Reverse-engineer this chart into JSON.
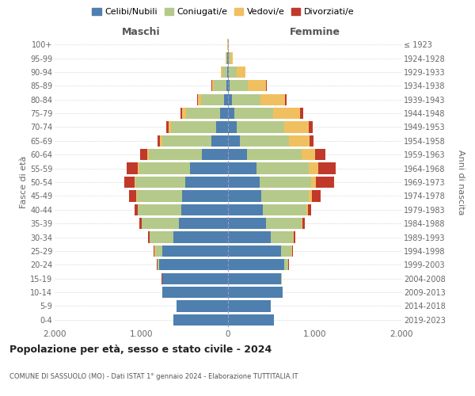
{
  "age_groups": [
    "100+",
    "95-99",
    "90-94",
    "85-89",
    "80-84",
    "75-79",
    "70-74",
    "65-69",
    "60-64",
    "55-59",
    "50-54",
    "45-49",
    "40-44",
    "35-39",
    "30-34",
    "25-29",
    "20-24",
    "15-19",
    "10-14",
    "5-9",
    "0-4"
  ],
  "birth_years": [
    "≤ 1923",
    "1924-1928",
    "1929-1933",
    "1934-1938",
    "1939-1943",
    "1944-1948",
    "1949-1953",
    "1954-1958",
    "1959-1963",
    "1964-1968",
    "1969-1973",
    "1974-1978",
    "1979-1983",
    "1984-1988",
    "1989-1993",
    "1994-1998",
    "1999-2003",
    "2004-2008",
    "2009-2013",
    "2014-2018",
    "2019-2023"
  ],
  "males": {
    "celibi": [
      2,
      5,
      10,
      20,
      50,
      90,
      140,
      190,
      300,
      440,
      490,
      530,
      540,
      565,
      630,
      760,
      790,
      755,
      755,
      590,
      630
    ],
    "coniugati": [
      2,
      12,
      55,
      145,
      265,
      395,
      515,
      570,
      615,
      585,
      580,
      520,
      500,
      430,
      270,
      82,
      22,
      5,
      0,
      0,
      0
    ],
    "vedovi": [
      2,
      6,
      18,
      22,
      32,
      42,
      32,
      22,
      16,
      12,
      6,
      6,
      3,
      3,
      3,
      3,
      3,
      0,
      0,
      0,
      0
    ],
    "divorziati": [
      0,
      0,
      3,
      6,
      10,
      18,
      28,
      33,
      85,
      130,
      120,
      90,
      32,
      25,
      20,
      10,
      5,
      3,
      0,
      0,
      0
    ]
  },
  "females": {
    "nubili": [
      2,
      5,
      12,
      22,
      42,
      72,
      105,
      135,
      215,
      325,
      365,
      385,
      405,
      435,
      495,
      610,
      650,
      610,
      630,
      490,
      530
    ],
    "coniugate": [
      2,
      22,
      85,
      210,
      330,
      450,
      540,
      570,
      630,
      610,
      590,
      550,
      500,
      410,
      255,
      125,
      42,
      12,
      0,
      0,
      0
    ],
    "vedove": [
      6,
      32,
      105,
      210,
      290,
      310,
      290,
      240,
      155,
      105,
      62,
      32,
      16,
      12,
      6,
      4,
      3,
      0,
      0,
      0,
      0
    ],
    "divorziate": [
      0,
      0,
      3,
      6,
      18,
      32,
      38,
      42,
      125,
      205,
      205,
      105,
      42,
      32,
      22,
      12,
      6,
      3,
      0,
      0,
      0
    ]
  },
  "colors": {
    "celibi": "#4e7faf",
    "coniugati": "#b5c98a",
    "vedovi": "#f0c060",
    "divorziati": "#c0392b"
  },
  "xlim": 2000,
  "title_main": "Popolazione per età, sesso e stato civile - 2024",
  "title_sub": "COMUNE DI SASSUOLO (MO) - Dati ISTAT 1° gennaio 2024 - Elaborazione TUTTITALIA.IT",
  "ylabel_left": "Fasce di età",
  "ylabel_right": "Anni di nascita",
  "xlabel_left": "Maschi",
  "xlabel_right": "Femmine",
  "legend_labels": [
    "Celibi/Nubili",
    "Coniugati/e",
    "Vedovi/e",
    "Divorziati/e"
  ],
  "background_color": "#ffffff",
  "grid_color": "#cccccc"
}
